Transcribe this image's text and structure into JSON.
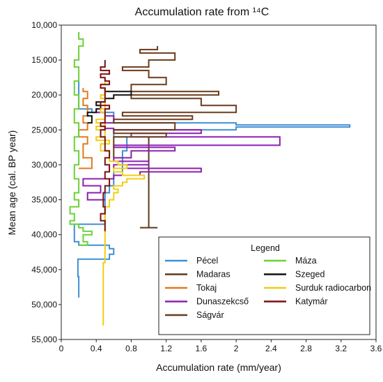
{
  "chart_data": {
    "type": "line",
    "title": "Accumulation rate from ¹⁴C",
    "xlabel": "Accumulation rate (mm/year)",
    "ylabel": "Mean age (cal. BP year)",
    "xlim": [
      0,
      3.6
    ],
    "ylim": [
      10000,
      55000
    ],
    "y_inverted": true,
    "x_ticks": [
      "0",
      "0.4",
      "0.8",
      "1.2",
      "1.6",
      "2",
      "2.4",
      "2.8",
      "3.2",
      "3.6"
    ],
    "y_ticks": [
      "10,000",
      "15,000",
      "20,000",
      "25,000",
      "30,000",
      "35,000",
      "40,000",
      "45,000",
      "50,000",
      "55,000"
    ],
    "legend_title": "Legend",
    "legend_position": "lower-right",
    "series": [
      {
        "name": "Pécel",
        "color": "#3f8fd2",
        "points": [
          [
            0.2,
            49000
          ],
          [
            0.2,
            46000
          ],
          [
            0.19,
            43500
          ],
          [
            0.55,
            43300
          ],
          [
            0.55,
            42800
          ],
          [
            0.6,
            42000
          ],
          [
            0.55,
            41500
          ],
          [
            0.2,
            41000
          ],
          [
            0.15,
            38500
          ],
          [
            0.5,
            34000
          ],
          [
            0.55,
            33000
          ],
          [
            0.6,
            31000
          ],
          [
            0.7,
            28000
          ],
          [
            0.75,
            26000
          ],
          [
            0.6,
            25000
          ],
          [
            2.0,
            24600
          ],
          [
            3.3,
            24300
          ],
          [
            2.0,
            24000
          ],
          [
            0.6,
            23500
          ],
          [
            0.6,
            22500
          ],
          [
            0.35,
            22000
          ],
          [
            0.2,
            21500
          ],
          [
            0.2,
            18000
          ]
        ]
      },
      {
        "name": "Madaras",
        "color": "#5a3a1a",
        "points": [
          [
            1.0,
            26000
          ],
          [
            1.0,
            39000
          ],
          [
            0.9,
            39000
          ],
          [
            1.1,
            39000
          ]
        ]
      },
      {
        "name": "Tokaj",
        "color": "#e07a1f",
        "points": [
          [
            0.2,
            30500
          ],
          [
            0.35,
            29000
          ],
          [
            0.25,
            27000
          ],
          [
            0.3,
            26000
          ],
          [
            0.2,
            25000
          ],
          [
            0.3,
            24000
          ],
          [
            0.25,
            23000
          ],
          [
            0.3,
            22500
          ],
          [
            0.3,
            21500
          ],
          [
            0.25,
            20500
          ],
          [
            0.3,
            19500
          ],
          [
            0.25,
            19000
          ]
        ]
      },
      {
        "name": "Dunaszekcső",
        "color": "#8b1fb0",
        "points": [
          [
            0.5,
            35000
          ],
          [
            0.3,
            34000
          ],
          [
            0.45,
            33000
          ],
          [
            0.25,
            32000
          ],
          [
            0.6,
            31500
          ],
          [
            0.9,
            31000
          ],
          [
            1.6,
            30500
          ],
          [
            0.6,
            30000
          ],
          [
            1.0,
            29500
          ],
          [
            0.6,
            29000
          ],
          [
            0.8,
            28000
          ],
          [
            1.3,
            27500
          ],
          [
            0.6,
            27200
          ],
          [
            2.5,
            26000
          ],
          [
            0.8,
            25500
          ],
          [
            1.6,
            25000
          ],
          [
            0.6,
            24800
          ],
          [
            0.5,
            24000
          ],
          [
            0.6,
            23000
          ],
          [
            0.5,
            22500
          ],
          [
            0.4,
            22000
          ]
        ]
      },
      {
        "name": "Ságvár",
        "color": "#6b3a1a",
        "points": [
          [
            0.6,
            29000
          ],
          [
            0.6,
            26000
          ],
          [
            1.2,
            25500
          ],
          [
            0.6,
            25000
          ],
          [
            1.3,
            24000
          ],
          [
            0.6,
            23500
          ],
          [
            1.5,
            23000
          ],
          [
            0.7,
            22500
          ],
          [
            2.0,
            21500
          ],
          [
            1.6,
            20500
          ],
          [
            0.8,
            20000
          ],
          [
            1.8,
            19500
          ],
          [
            0.8,
            18500
          ],
          [
            1.2,
            17500
          ],
          [
            1.0,
            16500
          ],
          [
            0.7,
            16000
          ],
          [
            1.0,
            15000
          ],
          [
            1.3,
            14000
          ],
          [
            0.9,
            13500
          ],
          [
            1.1,
            13000
          ]
        ]
      },
      {
        "name": "Máza",
        "color": "#6bd138",
        "points": [
          [
            0.2,
            41500
          ],
          [
            0.3,
            41000
          ],
          [
            0.25,
            40000
          ],
          [
            0.35,
            39500
          ],
          [
            0.25,
            39000
          ],
          [
            0.2,
            38500
          ],
          [
            0.1,
            38000
          ],
          [
            0.15,
            37000
          ],
          [
            0.1,
            36000
          ],
          [
            0.2,
            35000
          ],
          [
            0.15,
            34000
          ],
          [
            0.2,
            32000
          ],
          [
            0.15,
            30000
          ],
          [
            0.2,
            28000
          ],
          [
            0.15,
            26000
          ],
          [
            0.2,
            24000
          ],
          [
            0.15,
            22000
          ],
          [
            0.2,
            20000
          ],
          [
            0.15,
            18000
          ],
          [
            0.2,
            16000
          ],
          [
            0.15,
            15000
          ],
          [
            0.2,
            13000
          ],
          [
            0.25,
            12000
          ],
          [
            0.2,
            11000
          ]
        ]
      },
      {
        "name": "Szeged",
        "color": "#111111",
        "points": [
          [
            0.3,
            24000
          ],
          [
            0.35,
            23000
          ],
          [
            0.3,
            22500
          ],
          [
            0.4,
            22000
          ],
          [
            0.45,
            21500
          ],
          [
            0.4,
            21000
          ],
          [
            0.5,
            20500
          ],
          [
            0.6,
            20000
          ],
          [
            0.8,
            19500
          ],
          [
            0.5,
            19000
          ]
        ]
      },
      {
        "name": "Surduk radiocarbon",
        "color": "#f2cc16",
        "points": [
          [
            0.48,
            53000
          ],
          [
            0.48,
            44000
          ],
          [
            0.5,
            36000
          ],
          [
            0.55,
            35000
          ],
          [
            0.6,
            34000
          ],
          [
            0.65,
            33500
          ],
          [
            0.6,
            33000
          ],
          [
            0.7,
            32500
          ],
          [
            0.75,
            32000
          ],
          [
            0.95,
            31500
          ],
          [
            0.7,
            31000
          ],
          [
            0.6,
            30500
          ],
          [
            0.75,
            30000
          ],
          [
            0.65,
            29500
          ],
          [
            0.55,
            28000
          ],
          [
            0.45,
            27000
          ],
          [
            0.55,
            26500
          ],
          [
            0.4,
            26000
          ],
          [
            0.5,
            25000
          ],
          [
            0.4,
            24500
          ],
          [
            0.5,
            24000
          ],
          [
            0.4,
            23500
          ],
          [
            0.5,
            22500
          ],
          [
            0.45,
            22000
          ],
          [
            0.5,
            20500
          ],
          [
            0.45,
            20000
          ],
          [
            0.5,
            19000
          ],
          [
            0.45,
            18500
          ],
          [
            0.5,
            17500
          ]
        ]
      },
      {
        "name": "Katymár",
        "color": "#7a1010",
        "points": [
          [
            0.5,
            39500
          ],
          [
            0.5,
            38000
          ],
          [
            0.45,
            37000
          ],
          [
            0.5,
            36000
          ],
          [
            0.48,
            34000
          ],
          [
            0.5,
            33000
          ],
          [
            0.55,
            32000
          ],
          [
            0.5,
            31000
          ],
          [
            0.55,
            30000
          ],
          [
            0.5,
            29000
          ],
          [
            0.55,
            28000
          ],
          [
            0.5,
            27000
          ],
          [
            0.5,
            26000
          ],
          [
            0.45,
            25000
          ],
          [
            0.5,
            24500
          ],
          [
            0.45,
            24000
          ],
          [
            0.5,
            23500
          ],
          [
            0.5,
            22000
          ],
          [
            0.55,
            21500
          ],
          [
            0.45,
            21000
          ],
          [
            0.5,
            20500
          ],
          [
            0.5,
            19000
          ],
          [
            0.45,
            18500
          ],
          [
            0.55,
            18000
          ],
          [
            0.5,
            17500
          ],
          [
            0.45,
            17000
          ],
          [
            0.55,
            16500
          ],
          [
            0.45,
            16000
          ],
          [
            0.5,
            15500
          ],
          [
            0.5,
            15000
          ]
        ]
      }
    ]
  }
}
